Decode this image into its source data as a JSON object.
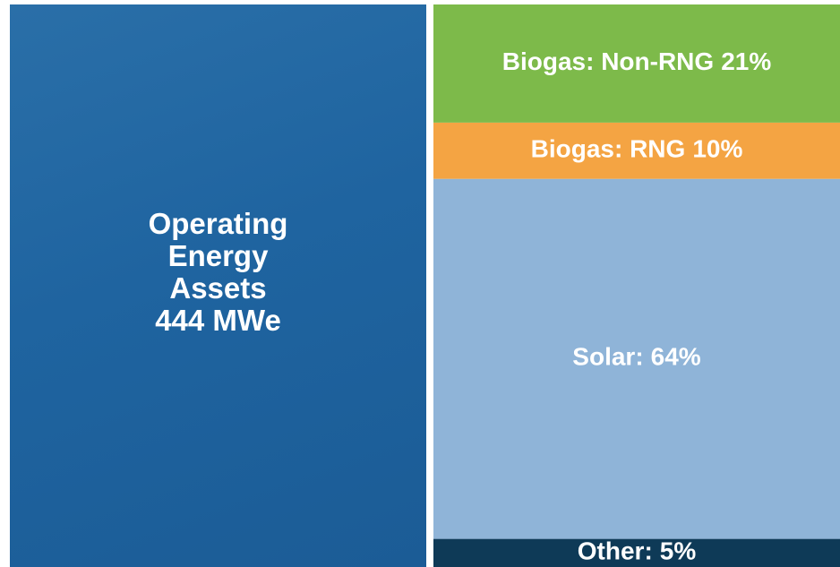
{
  "chart_data": {
    "type": "stacked-column",
    "title": "Operating Energy Assets",
    "subtitle": "444 MWe",
    "series": [
      {
        "name": "Biogas: Non-RNG",
        "color": "#7dba4a",
        "values": [
          21
        ],
        "value_labels": [
          "21%"
        ]
      },
      {
        "name": "Biogas: RNG",
        "color": "#f4a443",
        "values": [
          10
        ],
        "value_labels": [
          "10%"
        ]
      },
      {
        "name": "Solar:",
        "color": "#8fb4d8",
        "values": [
          64
        ],
        "value_labels": [
          "64%"
        ]
      },
      {
        "name": "Other:",
        "color": "#0e3a57",
        "values": [
          5
        ],
        "value_labels": [
          "5%"
        ]
      }
    ]
  }
}
